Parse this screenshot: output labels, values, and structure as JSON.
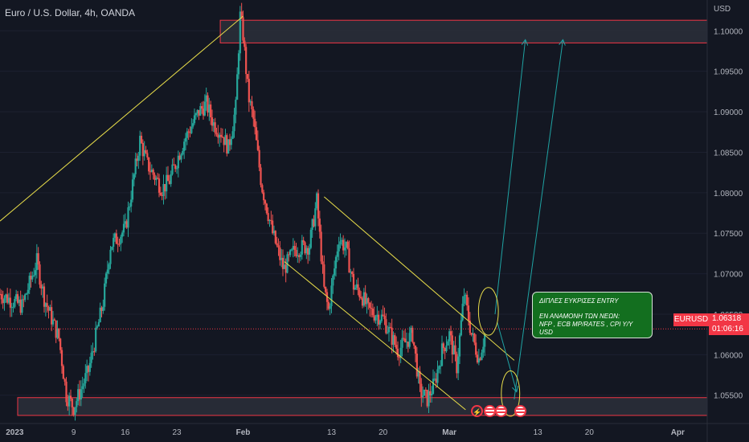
{
  "header": {
    "title": "Euro / U.S. Dollar, 4h, OANDA",
    "currency": "USD"
  },
  "price_label": {
    "symbol": "EURUSD",
    "price": "1.06318",
    "countdown": "01:06:16"
  },
  "annotation": {
    "line1": "ΔΙΠΛΕΣ ΕΥΚΡΙΣΕΣ ENTRY",
    "line2": "ΕΝ ΑΝΑΜΟΝΗ ΤΩΝ ΝΕΩΝ:",
    "line3": "NFP , ECB MP/RATES , CPI Y/Y USD"
  },
  "colors": {
    "background": "#131722",
    "up": "#26a69a",
    "down": "#ef5350",
    "trendline": "#e8dd4a",
    "arrow": "#1fa3a3",
    "zone_border": "#f23645",
    "note_bg": "#136f1f"
  },
  "events": [
    "lightning-icon",
    "us-flag-icon",
    "us-flag-icon",
    "us-flag-icon"
  ],
  "chart_data": {
    "type": "candlestick",
    "title": "Euro / U.S. Dollar, 4h, OANDA",
    "x_ticks": [
      "2023",
      "9",
      "16",
      "23",
      "Feb",
      "13",
      "20",
      "Mar",
      "13",
      "20",
      "Apr"
    ],
    "x_tick_days": [
      0,
      8,
      15,
      22,
      31,
      43,
      50,
      59,
      71,
      78,
      90
    ],
    "y_ticks": [
      1.055,
      1.06,
      1.065,
      1.07,
      1.075,
      1.08,
      1.085,
      1.09,
      1.095,
      1.1
    ],
    "y_tick_labels": [
      "1.05500",
      "1.06000",
      "1.06500",
      "1.07000",
      "1.07500",
      "1.08000",
      "1.08500",
      "1.09000",
      "1.09500",
      "1.10000"
    ],
    "ylim": [
      1.0515,
      1.1038
    ],
    "xlim_days": [
      -2,
      94
    ],
    "last_price": 1.06318,
    "path_days": [
      -2,
      1,
      3,
      4,
      6,
      7,
      8,
      10,
      12,
      13,
      15,
      17,
      18,
      20,
      21,
      23,
      25,
      26,
      27,
      28,
      29,
      30,
      30.6,
      31,
      31.7,
      32.4,
      33.5,
      35,
      36.5,
      38,
      40,
      41,
      42,
      42.6,
      44,
      45,
      46,
      47,
      48,
      50,
      52,
      54,
      55,
      56,
      57,
      58,
      59,
      60,
      61,
      62,
      63,
      64
    ],
    "path_prices": [
      1.0675,
      1.066,
      1.0715,
      1.067,
      1.062,
      1.055,
      1.0535,
      1.058,
      1.0665,
      1.0735,
      1.0755,
      1.0865,
      1.0835,
      1.0805,
      1.0815,
      1.0865,
      1.09,
      1.091,
      1.0885,
      1.0875,
      1.0855,
      1.0905,
      1.1018,
      1.0995,
      1.092,
      1.089,
      1.081,
      1.075,
      1.0705,
      1.073,
      1.0735,
      1.079,
      1.068,
      1.0655,
      1.0745,
      1.073,
      1.0685,
      1.0675,
      1.0655,
      1.0645,
      1.0605,
      1.0625,
      1.0555,
      1.0545,
      1.0565,
      1.0605,
      1.0625,
      1.0585,
      1.0675,
      1.0625,
      1.0595,
      1.0631
    ],
    "zones": [
      {
        "from_day": -2,
        "to_day": 94,
        "low": 1.0985,
        "high": 1.1013
      },
      {
        "from_day": -2,
        "to_day": 94,
        "low": 1.0525,
        "high": 1.0547
      }
    ],
    "trendlines": [
      {
        "d1": -2,
        "p1": 1.0765,
        "d2": 31.0,
        "p2": 1.1018
      },
      {
        "d1": 42.0,
        "p1": 1.0795,
        "d2": 67.8,
        "p2": 1.0593
      },
      {
        "d1": 36.6,
        "p1": 1.0715,
        "d2": 61.2,
        "p2": 1.0532
      }
    ],
    "arrows": [
      {
        "d1": 65.2,
        "p1": 1.065,
        "d2": 69.3,
        "p2": 1.0988
      },
      {
        "d1": 67.8,
        "p1": 1.0545,
        "d2": 74.4,
        "p2": 1.0988
      },
      {
        "d1": 65.5,
        "p1": 1.064,
        "d2": 68.1,
        "p2": 1.0555
      }
    ],
    "ellipses": [
      {
        "day": 64.3,
        "price": 1.06535,
        "rx_days": 1.35,
        "ry_price": 0.00295
      },
      {
        "day": 67.3,
        "price": 1.0552,
        "rx_days": 1.25,
        "ry_price": 0.0028
      }
    ]
  }
}
